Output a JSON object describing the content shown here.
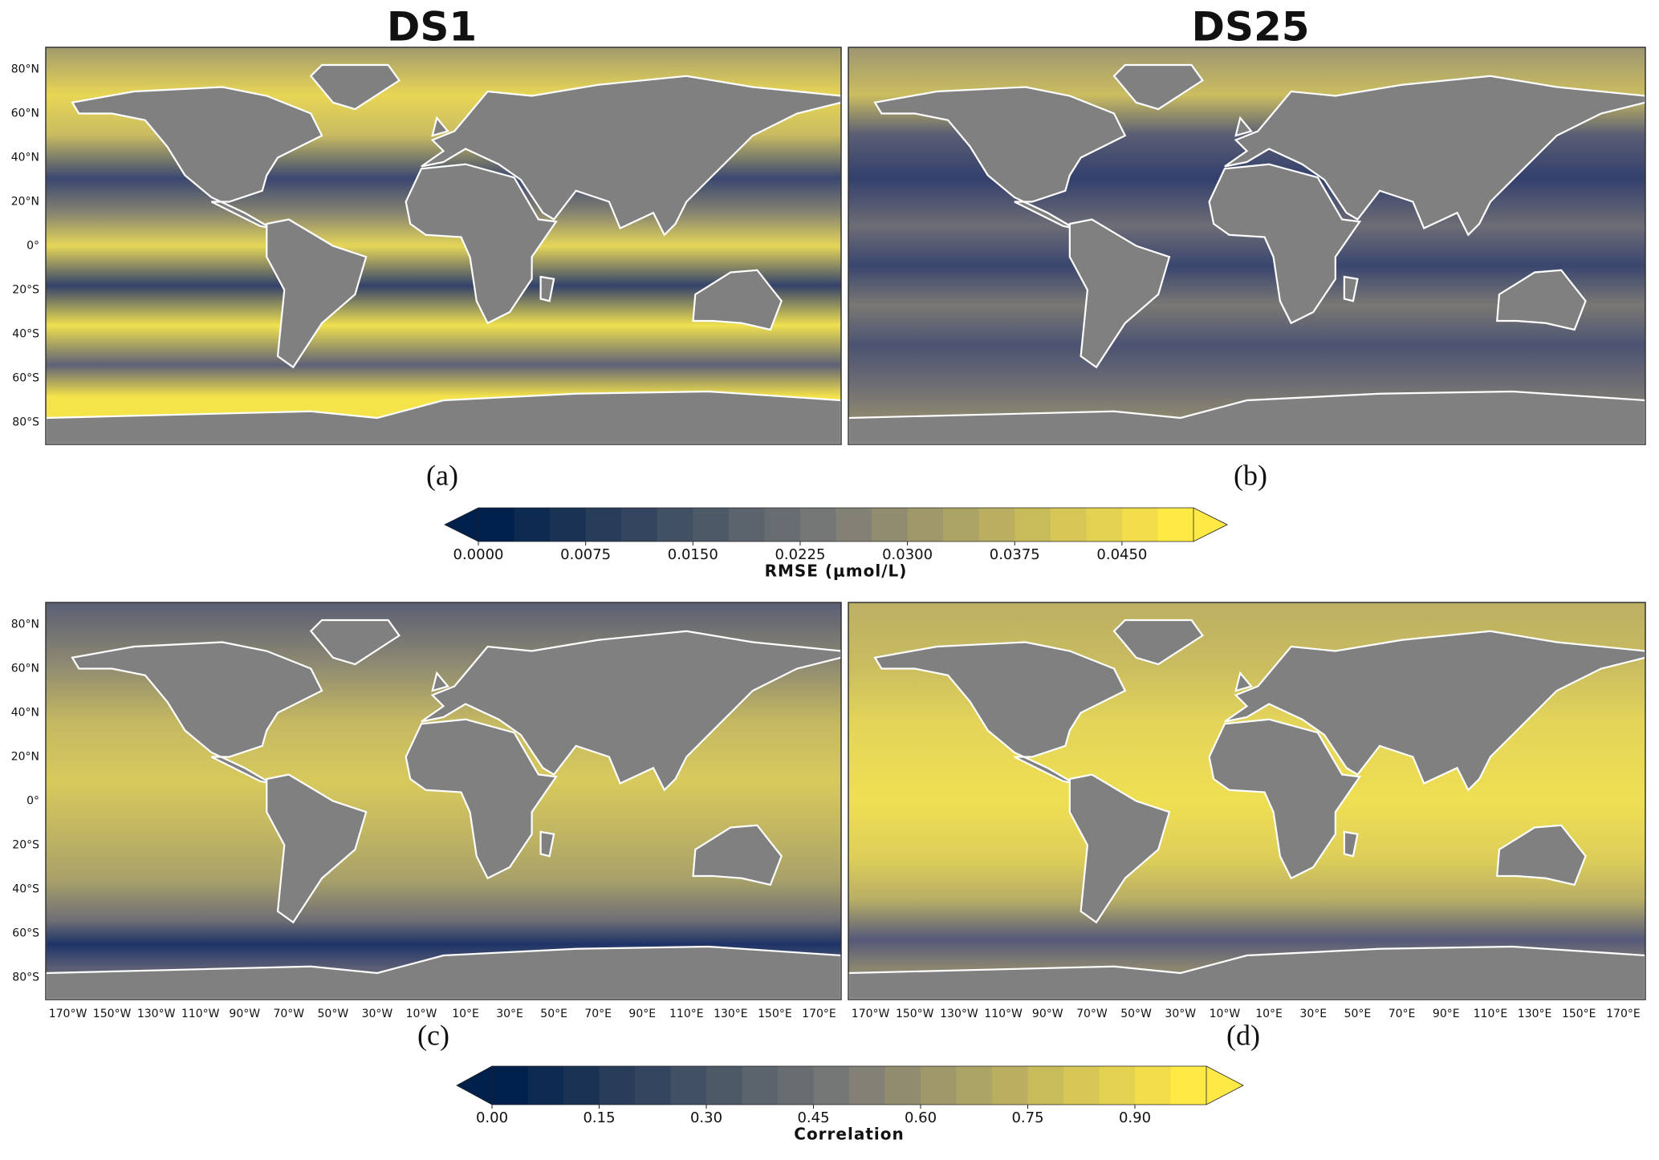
{
  "titles": [
    "DS1",
    "DS25"
  ],
  "panel_labels": [
    "(a)",
    "(b)",
    "(c)",
    "(d)"
  ],
  "map_axes": {
    "xlim": [
      -180,
      180
    ],
    "ylim": [
      -90,
      90
    ],
    "xticks": [
      {
        "value": -170,
        "label": "170°W"
      },
      {
        "value": -150,
        "label": "150°W"
      },
      {
        "value": -130,
        "label": "130°W"
      },
      {
        "value": -110,
        "label": "110°W"
      },
      {
        "value": -90,
        "label": "90°W"
      },
      {
        "value": -70,
        "label": "70°W"
      },
      {
        "value": -50,
        "label": "50°W"
      },
      {
        "value": -30,
        "label": "30°W"
      },
      {
        "value": -10,
        "label": "10°W"
      },
      {
        "value": 10,
        "label": "10°E"
      },
      {
        "value": 30,
        "label": "30°E"
      },
      {
        "value": 50,
        "label": "50°E"
      },
      {
        "value": 70,
        "label": "70°E"
      },
      {
        "value": 90,
        "label": "90°E"
      },
      {
        "value": 110,
        "label": "110°E"
      },
      {
        "value": 130,
        "label": "130°E"
      },
      {
        "value": 150,
        "label": "150°E"
      },
      {
        "value": 170,
        "label": "170°E"
      }
    ],
    "yticks": [
      {
        "value": 80,
        "label": "80°N"
      },
      {
        "value": 60,
        "label": "60°N"
      },
      {
        "value": 40,
        "label": "40°N"
      },
      {
        "value": 20,
        "label": "20°N"
      },
      {
        "value": 0,
        "label": "0°"
      },
      {
        "value": -20,
        "label": "20°S"
      },
      {
        "value": -40,
        "label": "40°S"
      },
      {
        "value": -60,
        "label": "60°S"
      },
      {
        "value": -80,
        "label": "80°S"
      }
    ]
  },
  "colorbars": [
    {
      "label": "RMSE (μmol/L)",
      "lim": [
        0,
        0.05
      ],
      "colors": [
        "#00204c",
        "#7c7b78",
        "#ffe945"
      ],
      "ticks": [
        {
          "value": 0,
          "label": "0.0000"
        },
        {
          "value": 0.0075,
          "label": "0.0075"
        },
        {
          "value": 0.015,
          "label": "0.0150"
        },
        {
          "value": 0.0225,
          "label": "0.0225"
        },
        {
          "value": 0.03,
          "label": "0.0300"
        },
        {
          "value": 0.0375,
          "label": "0.0375"
        },
        {
          "value": 0.045,
          "label": "0.0450"
        }
      ]
    },
    {
      "label": "Correlation",
      "lim": [
        0,
        1
      ],
      "colors": [
        "#00204c",
        "#7c7b78",
        "#ffe945"
      ],
      "ticks": [
        {
          "value": 0,
          "label": "0.00"
        },
        {
          "value": 0.15,
          "label": "0.15"
        },
        {
          "value": 0.3,
          "label": "0.30"
        },
        {
          "value": 0.45,
          "label": "0.45"
        },
        {
          "value": 0.6,
          "label": "0.60"
        },
        {
          "value": 0.75,
          "label": "0.75"
        },
        {
          "value": 0.9,
          "label": "0.90"
        }
      ]
    }
  ]
}
